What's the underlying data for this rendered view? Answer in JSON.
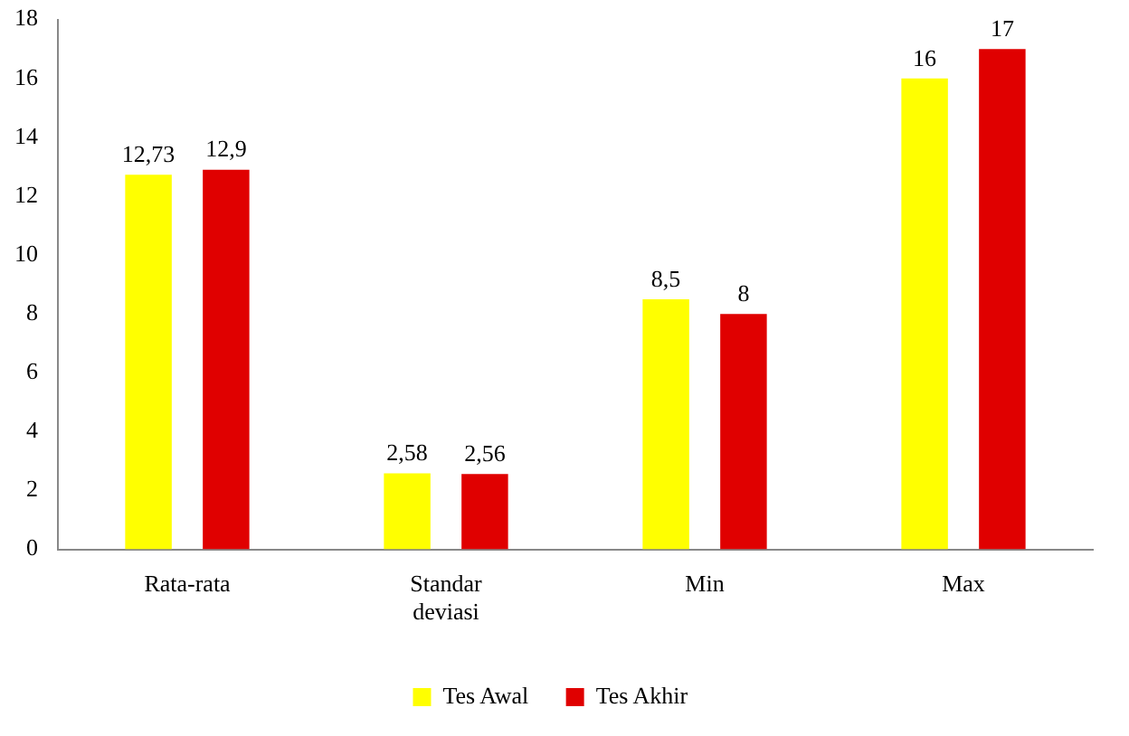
{
  "chart_data": {
    "type": "bar",
    "categories": [
      "Rata-rata",
      "Standar deviasi",
      "Min",
      "Max"
    ],
    "series": [
      {
        "name": "Tes Awal",
        "color": "#ffff00",
        "values": [
          12.73,
          2.58,
          8.5,
          16
        ],
        "value_labels": [
          "12,73",
          "2,58",
          "8,5",
          "16"
        ]
      },
      {
        "name": "Tes Akhir",
        "color": "#e00000",
        "values": [
          12.9,
          2.56,
          8,
          17
        ],
        "value_labels": [
          "12,9",
          "2,56",
          "8",
          "17"
        ]
      }
    ],
    "ylim": [
      0,
      18
    ],
    "yticks": [
      0,
      2,
      4,
      6,
      8,
      10,
      12,
      14,
      16,
      18
    ],
    "grid": false,
    "legend": "bottom"
  }
}
